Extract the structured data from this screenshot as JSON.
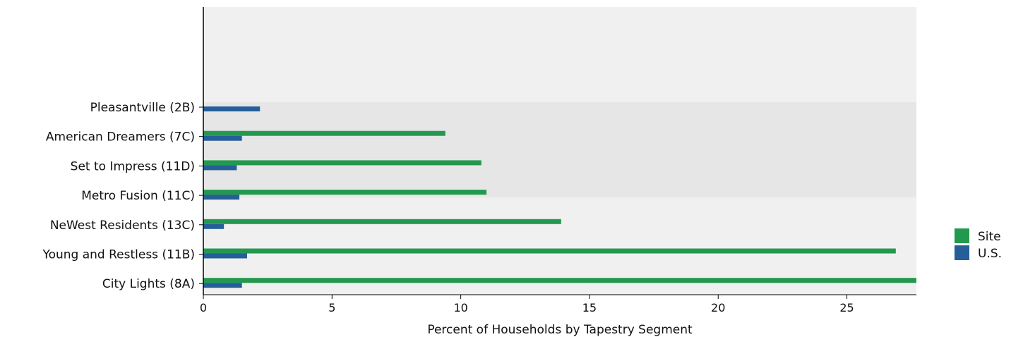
{
  "chart_data": {
    "type": "bar",
    "orientation": "horizontal",
    "categories": [
      "Pleasantville (2B)",
      "American Dreamers (7C)",
      "Set to Impress (11D)",
      "Metro Fusion (11C)",
      "NeWest Residents (13C)",
      "Young and Restless (11B)",
      "City Lights (8A)"
    ],
    "series": [
      {
        "name": "Site",
        "color": "#23994f",
        "values": [
          0.0,
          9.4,
          10.8,
          11.0,
          13.9,
          26.9,
          27.7
        ]
      },
      {
        "name": "U.S.",
        "color": "#255e99",
        "values": [
          2.2,
          1.5,
          1.3,
          1.4,
          0.8,
          1.7,
          1.5
        ]
      }
    ],
    "xlabel": "Percent of Households by Tapestry Segment",
    "ylabel": "",
    "xlim": [
      0,
      27.7
    ],
    "xticks": [
      "0",
      "5",
      "10",
      "15",
      "20",
      "25"
    ],
    "legend": {
      "position": "right",
      "entries": [
        "Site",
        "U.S."
      ]
    },
    "background_bands": {
      "outer": "#f0f0f0",
      "highlight": "#e6e6e6"
    },
    "grid": false
  }
}
